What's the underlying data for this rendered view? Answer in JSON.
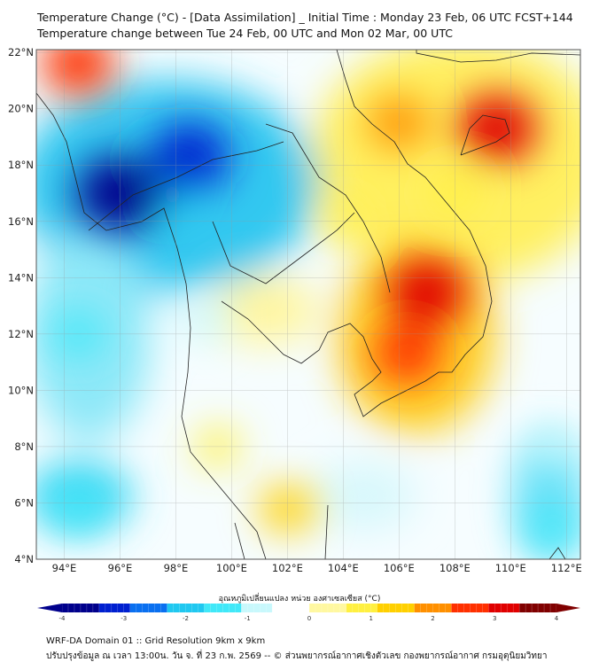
{
  "header": {
    "title_line1": "Temperature Change (°C) - [Data Assimilation] _ Initial Time : Monday 23 Feb, 06 UTC FCST+144",
    "title_line2": "Temperature change between Tue 24 Feb, 00 UTC and Mon 02 Mar, 00 UTC"
  },
  "map": {
    "lon_range": [
      93,
      112.5
    ],
    "lat_range": [
      4,
      22.1
    ],
    "lon_ticks": [
      {
        "v": 94,
        "label": "94°E"
      },
      {
        "v": 96,
        "label": "96°E"
      },
      {
        "v": 98,
        "label": "98°E"
      },
      {
        "v": 100,
        "label": "100°E"
      },
      {
        "v": 102,
        "label": "102°E"
      },
      {
        "v": 104,
        "label": "104°E"
      },
      {
        "v": 106,
        "label": "106°E"
      },
      {
        "v": 108,
        "label": "108°E"
      },
      {
        "v": 110,
        "label": "110°E"
      },
      {
        "v": 112,
        "label": "112°E"
      }
    ],
    "lat_ticks": [
      {
        "v": 4,
        "label": "4°N"
      },
      {
        "v": 6,
        "label": "6°N"
      },
      {
        "v": 8,
        "label": "8°N"
      },
      {
        "v": 10,
        "label": "10°N"
      },
      {
        "v": 12,
        "label": "12°N"
      },
      {
        "v": 14,
        "label": "14°N"
      },
      {
        "v": 16,
        "label": "16°N"
      },
      {
        "v": 18,
        "label": "18°N"
      },
      {
        "v": 20,
        "label": "20°N"
      },
      {
        "v": 22,
        "label": "22°N"
      }
    ],
    "anomalies": [
      {
        "lon": 97.5,
        "lat": 17.5,
        "value": -1.8
      },
      {
        "lon": 96,
        "lat": 17,
        "value": -3.5
      },
      {
        "lon": 98.5,
        "lat": 18.3,
        "value": -3
      },
      {
        "lon": 94.5,
        "lat": 12,
        "value": -1.2
      },
      {
        "lon": 99,
        "lat": 12.5,
        "value": -1
      },
      {
        "lon": 94.5,
        "lat": 5.8,
        "value": -1.2
      },
      {
        "lon": 111.5,
        "lat": 5,
        "value": -1.2
      },
      {
        "lon": 111.5,
        "lat": 8,
        "value": -1
      },
      {
        "lon": 94.5,
        "lat": 21.6,
        "value": 2.5
      },
      {
        "lon": 109.5,
        "lat": 19.3,
        "value": 3
      },
      {
        "lon": 107,
        "lat": 13.5,
        "value": 3
      },
      {
        "lon": 106.3,
        "lat": 11.3,
        "value": 2.3
      },
      {
        "lon": 106,
        "lat": 19.5,
        "value": 1.8
      },
      {
        "lon": 108,
        "lat": 17,
        "value": 1
      },
      {
        "lon": 102,
        "lat": 5.8,
        "value": 1.5
      },
      {
        "lon": 99.5,
        "lat": 8,
        "value": 0.8
      },
      {
        "lon": 104,
        "lat": 16,
        "value": 0.6
      }
    ]
  },
  "colorbar": {
    "label": "อุณหภูมิเปลี่ยนแปลง หน่วย องศาเซลเซียส (°C)",
    "min": -4,
    "max": 4,
    "ticks": [
      "-4",
      "-3",
      "-2",
      "-1",
      "0",
      "1",
      "2",
      "3",
      "4"
    ],
    "colors": [
      "#00008c",
      "#0020d0",
      "#0a70f0",
      "#20c8f0",
      "#40e8f8",
      "#c8f8fc",
      "#ffffff",
      "#fff8a0",
      "#fff040",
      "#ffd000",
      "#ff9000",
      "#ff3000",
      "#e00000",
      "#800000"
    ]
  },
  "footer": {
    "line1": "WRF-DA Domain 01 :: Grid Resolution 9km x 9km",
    "line2": "ปรับปรุงข้อมูล ณ เวลา 13:00น. วัน จ. ที่ 23 ก.พ. 2569 -- © ส่วนพยากรณ์อากาศเชิงตัวเลข กองพยากรณ์อากาศ กรมอุตุนิยมวิทยา"
  }
}
